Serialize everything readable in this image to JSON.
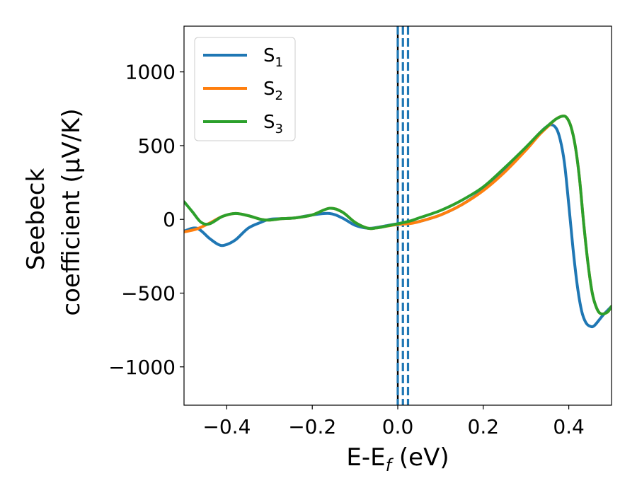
{
  "chart_data": {
    "type": "line",
    "title": "",
    "xlabel": {
      "base": "E-E",
      "sub": "f",
      "suffix": " (eV)"
    },
    "ylabel": {
      "line1": "Seebeck",
      "line2": "coefficient  (μV/K)"
    },
    "xlim": [
      -0.5,
      0.5
    ],
    "ylim": [
      -1260,
      1310
    ],
    "xticks": [
      -0.4,
      -0.2,
      0.0,
      0.2,
      0.4
    ],
    "xtick_labels": [
      "−0.4",
      "−0.2",
      "0.0",
      "0.2",
      "0.4"
    ],
    "yticks": [
      -1000,
      -500,
      0,
      500,
      1000
    ],
    "ytick_labels": [
      "−1000",
      "−500",
      "0",
      "500",
      "1000"
    ],
    "grid": false,
    "legend": {
      "placement": "top-left"
    },
    "vertical_lines": [
      {
        "x": 0.0,
        "color": "#000000",
        "style": "solid"
      },
      {
        "x": 0.0,
        "color": "#1f77b4",
        "style": "dashed"
      },
      {
        "x": 0.012,
        "color": "#1f77b4",
        "style": "dashed"
      },
      {
        "x": 0.024,
        "color": "#1f77b4",
        "style": "dashed"
      }
    ],
    "series": [
      {
        "name": "S",
        "sub": "1",
        "color": "#1f77b4",
        "x": [
          -0.5,
          -0.47,
          -0.44,
          -0.42,
          -0.405,
          -0.38,
          -0.35,
          -0.32,
          -0.3,
          -0.27,
          -0.24,
          -0.2,
          -0.16,
          -0.13,
          -0.1,
          -0.07,
          -0.05,
          -0.03,
          0.0,
          0.03,
          0.05,
          0.1,
          0.15,
          0.2,
          0.25,
          0.3,
          0.33,
          0.355,
          0.37,
          0.38,
          0.39,
          0.4,
          0.41,
          0.42,
          0.43,
          0.44,
          0.45,
          0.46,
          0.48,
          0.5
        ],
        "y": [
          -80,
          -60,
          -130,
          -170,
          -175,
          -140,
          -60,
          -20,
          0,
          5,
          10,
          30,
          40,
          10,
          -40,
          -60,
          -55,
          -45,
          -30,
          -25,
          -15,
          30,
          100,
          200,
          330,
          480,
          580,
          640,
          620,
          540,
          380,
          100,
          -200,
          -450,
          -620,
          -700,
          -725,
          -720,
          -650,
          -590
        ]
      },
      {
        "name": "S",
        "sub": "2",
        "color": "#ff7f0e",
        "x": [
          -0.5,
          -0.47,
          -0.44,
          -0.41,
          -0.38,
          -0.35,
          -0.32,
          -0.3,
          -0.27,
          -0.24,
          -0.2,
          -0.16,
          -0.13,
          -0.1,
          -0.07,
          -0.05,
          -0.03,
          0.0,
          0.03,
          0.05,
          0.1,
          0.15,
          0.2,
          0.25,
          0.3,
          0.33,
          0.355,
          0.37,
          0.385,
          0.395,
          0.405,
          0.415,
          0.425,
          0.435,
          0.445,
          0.455,
          0.465,
          0.475,
          0.49,
          0.5
        ],
        "y": [
          -85,
          -65,
          -25,
          20,
          40,
          25,
          0,
          -5,
          5,
          10,
          30,
          75,
          50,
          -20,
          -60,
          -58,
          -48,
          -35,
          -28,
          -15,
          30,
          100,
          195,
          320,
          470,
          570,
          640,
          680,
          700,
          690,
          630,
          500,
          280,
          -30,
          -300,
          -500,
          -600,
          -640,
          -630,
          -590
        ]
      },
      {
        "name": "S",
        "sub": "3",
        "color": "#2ca02c",
        "x": [
          -0.5,
          -0.48,
          -0.46,
          -0.44,
          -0.41,
          -0.38,
          -0.35,
          -0.32,
          -0.3,
          -0.27,
          -0.24,
          -0.2,
          -0.16,
          -0.13,
          -0.1,
          -0.07,
          -0.05,
          -0.03,
          0.0,
          0.03,
          0.05,
          0.1,
          0.15,
          0.2,
          0.25,
          0.3,
          0.33,
          0.355,
          0.37,
          0.385,
          0.395,
          0.405,
          0.415,
          0.425,
          0.435,
          0.445,
          0.455,
          0.465,
          0.475,
          0.49,
          0.5
        ],
        "y": [
          120,
          50,
          -20,
          -30,
          20,
          40,
          25,
          0,
          -5,
          5,
          10,
          30,
          75,
          50,
          -20,
          -60,
          -58,
          -48,
          -30,
          -10,
          10,
          60,
          130,
          220,
          350,
          490,
          580,
          645,
          680,
          700,
          690,
          630,
          500,
          280,
          -30,
          -300,
          -500,
          -600,
          -640,
          -630,
          -590
        ]
      }
    ]
  }
}
